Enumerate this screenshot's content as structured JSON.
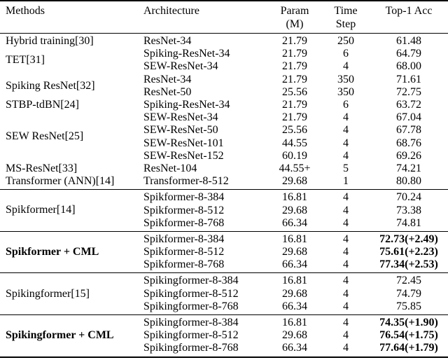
{
  "table": {
    "header": {
      "methods": "Methods",
      "architecture": "Architecture",
      "param_line1": "Param",
      "param_line2": "(M)",
      "time_line1": "Time",
      "time_line2": "Step",
      "top1_acc": "Top-1 Acc"
    },
    "colors": {
      "text": "#000000",
      "background": "#ffffff",
      "rule": "#000000"
    },
    "sections": [
      {
        "bold": false,
        "groups": [
          {
            "method": "Hybrid training[30]",
            "rows": [
              {
                "arch": "ResNet-34",
                "param": "21.79",
                "time": "250",
                "acc": "61.48"
              }
            ]
          },
          {
            "method": "TET[31]",
            "rows": [
              {
                "arch": "Spiking-ResNet-34",
                "param": "21.79",
                "time": "6",
                "acc": "64.79"
              },
              {
                "arch": "SEW-ResNet-34",
                "param": "21.79",
                "time": "4",
                "acc": "68.00"
              }
            ]
          },
          {
            "method": "Spiking ResNet[32]",
            "rows": [
              {
                "arch": "ResNet-34",
                "param": "21.79",
                "time": "350",
                "acc": "71.61"
              },
              {
                "arch": "ResNet-50",
                "param": "25.56",
                "time": "350",
                "acc": "72.75"
              }
            ]
          },
          {
            "method": "STBP-tdBN[24]",
            "rows": [
              {
                "arch": "Spiking-ResNet-34",
                "param": "21.79",
                "time": "6",
                "acc": "63.72"
              }
            ]
          },
          {
            "method": "SEW ResNet[25]",
            "rows": [
              {
                "arch": "SEW-ResNet-34",
                "param": "21.79",
                "time": "4",
                "acc": "67.04"
              },
              {
                "arch": "SEW-ResNet-50",
                "param": "25.56",
                "time": "4",
                "acc": "67.78"
              },
              {
                "arch": "SEW-ResNet-101",
                "param": "44.55",
                "time": "4",
                "acc": "68.76"
              },
              {
                "arch": "SEW-ResNet-152",
                "param": "60.19",
                "time": "4",
                "acc": "69.26"
              }
            ]
          },
          {
            "method": "MS-ResNet[33]",
            "rows": [
              {
                "arch": "ResNet-104",
                "param": "44.55+",
                "time": "5",
                "acc": "74.21"
              }
            ]
          },
          {
            "method": "Transformer (ANN)[14]",
            "rows": [
              {
                "arch": "Transformer-8-512",
                "param": "29.68",
                "time": "1",
                "acc": "80.80"
              }
            ]
          }
        ]
      },
      {
        "bold": false,
        "groups": [
          {
            "method": "Spikformer[14]",
            "rows": [
              {
                "arch": "Spikformer-8-384",
                "param": "16.81",
                "time": "4",
                "acc": "70.24"
              },
              {
                "arch": "Spikformer-8-512",
                "param": "29.68",
                "time": "4",
                "acc": "73.38"
              },
              {
                "arch": "Spikformer-8-768",
                "param": "66.34",
                "time": "4",
                "acc": "74.81"
              }
            ]
          }
        ]
      },
      {
        "bold": true,
        "groups": [
          {
            "method": "Spikformer + CML",
            "rows": [
              {
                "arch": "Spikformer-8-384",
                "param": "16.81",
                "time": "4",
                "acc": "72.73(+2.49)"
              },
              {
                "arch": "Spikformer-8-512",
                "param": "29.68",
                "time": "4",
                "acc": "75.61(+2.23)"
              },
              {
                "arch": "Spikformer-8-768",
                "param": "66.34",
                "time": "4",
                "acc": "77.34(+2.53)"
              }
            ]
          }
        ]
      },
      {
        "bold": false,
        "groups": [
          {
            "method": "Spikingformer[15]",
            "rows": [
              {
                "arch": "Spikingformer-8-384",
                "param": "16.81",
                "time": "4",
                "acc": "72.45"
              },
              {
                "arch": "Spikingformer-8-512",
                "param": "29.68",
                "time": "4",
                "acc": "74.79"
              },
              {
                "arch": "Spikingformer-8-768",
                "param": "66.34",
                "time": "4",
                "acc": "75.85"
              }
            ]
          }
        ]
      },
      {
        "bold": true,
        "groups": [
          {
            "method": "Spikingformer + CML",
            "rows": [
              {
                "arch": "Spikingformer-8-384",
                "param": "16.81",
                "time": "4",
                "acc": "74.35(+1.90)"
              },
              {
                "arch": "Spikingformer-8-512",
                "param": "29.68",
                "time": "4",
                "acc": "76.54(+1.75)"
              },
              {
                "arch": "Spikingformer-8-768",
                "param": "66.34",
                "time": "4",
                "acc": "77.64(+1.79)"
              }
            ]
          }
        ]
      }
    ]
  }
}
